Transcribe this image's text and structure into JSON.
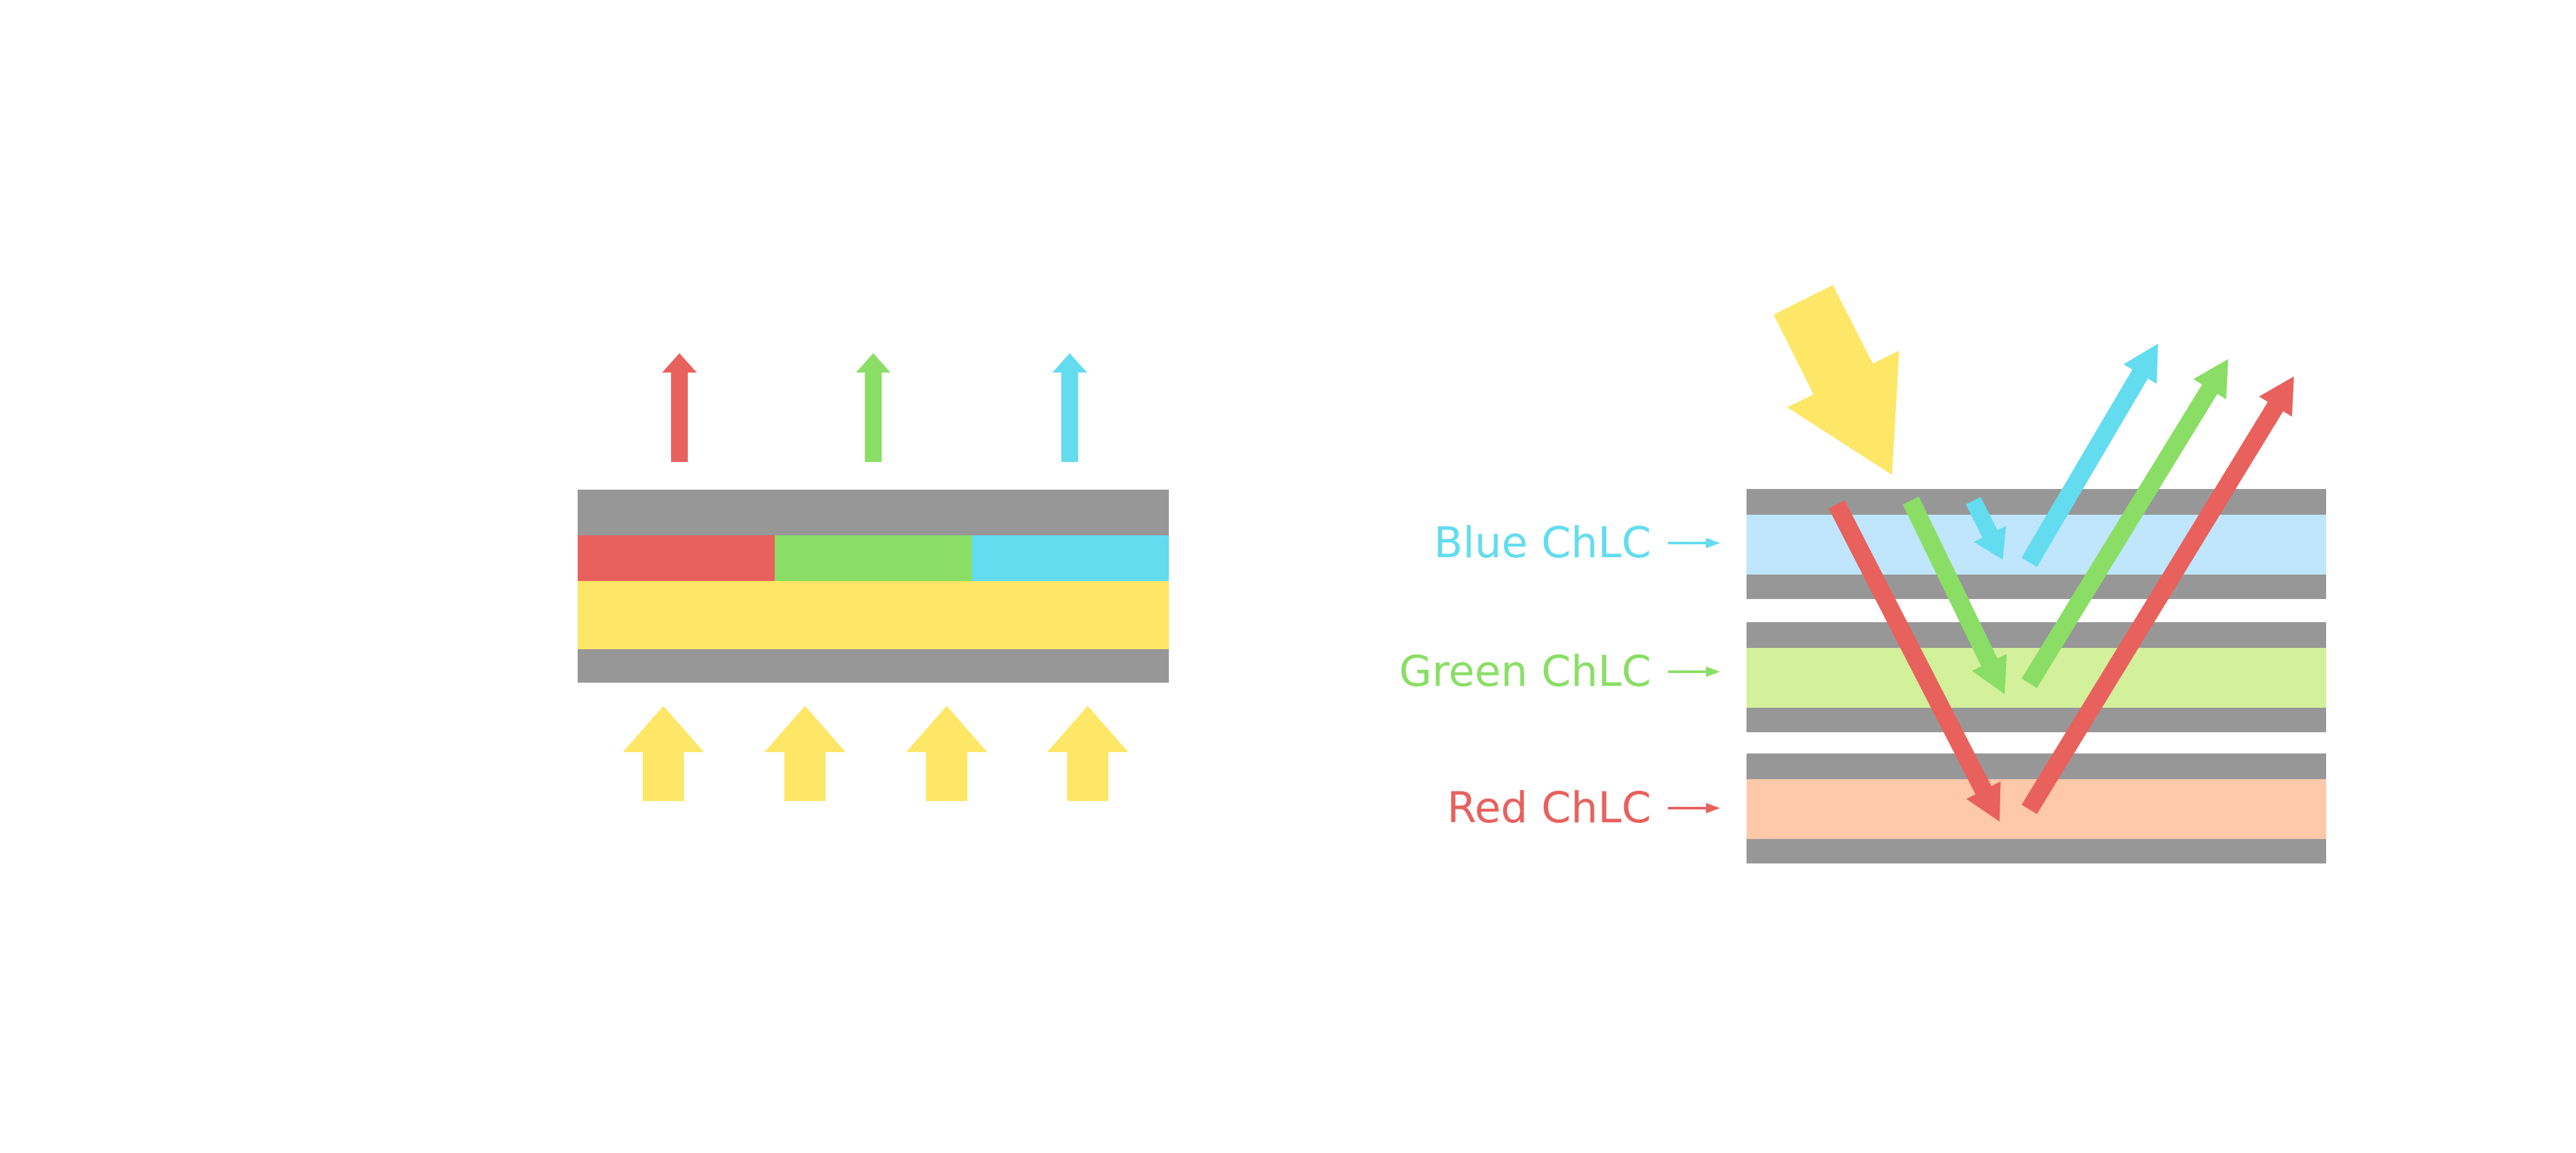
{
  "colors": {
    "gray": "#979797",
    "red": "#E8615D",
    "green": "#8ADE65",
    "blue": "#63DCEF",
    "yellow": "#FEE667",
    "light_blue": "#BFE6FD",
    "light_green": "#D3F09A",
    "peach": "#FDC9A9"
  },
  "right_panel": {
    "labels": [
      {
        "text": "Blue ChLC",
        "color": "#63DCEF"
      },
      {
        "text": "Green ChLC",
        "color": "#8ADE65"
      },
      {
        "text": "Red ChLC",
        "color": "#E8615D"
      }
    ]
  }
}
